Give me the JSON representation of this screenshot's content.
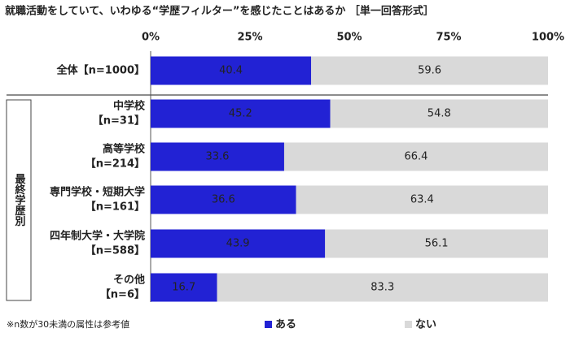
{
  "chart_data": {
    "type": "stacked_bar_horizontal",
    "title": "就職活動をしていて、いわゆる“学歴フィルター”を感じたことはあるか ［単一回答形式］",
    "group_label": "最終学歴別",
    "footnote": "※n数が30未満の属性は参考値",
    "categories": [
      [
        "全体【n=1000】"
      ],
      [
        "中学校",
        "【n=31】"
      ],
      [
        "高等学校",
        "【n=214】"
      ],
      [
        "専門学校・短期大学",
        "【n=161】"
      ],
      [
        "四年制大学・大学院",
        "【n=588】"
      ],
      [
        "その他",
        "【n=6】"
      ]
    ],
    "series": [
      {
        "name": "ある",
        "color": "#2222d4",
        "values": [
          40.4,
          45.2,
          33.6,
          36.6,
          43.9,
          16.7
        ]
      },
      {
        "name": "ない",
        "color": "#d9d9d9",
        "values": [
          59.6,
          54.8,
          66.4,
          63.4,
          56.1,
          83.3
        ]
      }
    ],
    "xlim": [
      0,
      100
    ],
    "xticks": [
      {
        "value": 0,
        "label": "0%"
      },
      {
        "value": 25,
        "label": "25%"
      },
      {
        "value": 50,
        "label": "50%"
      },
      {
        "value": 75,
        "label": "75%"
      },
      {
        "value": 100,
        "label": "100%"
      }
    ]
  }
}
